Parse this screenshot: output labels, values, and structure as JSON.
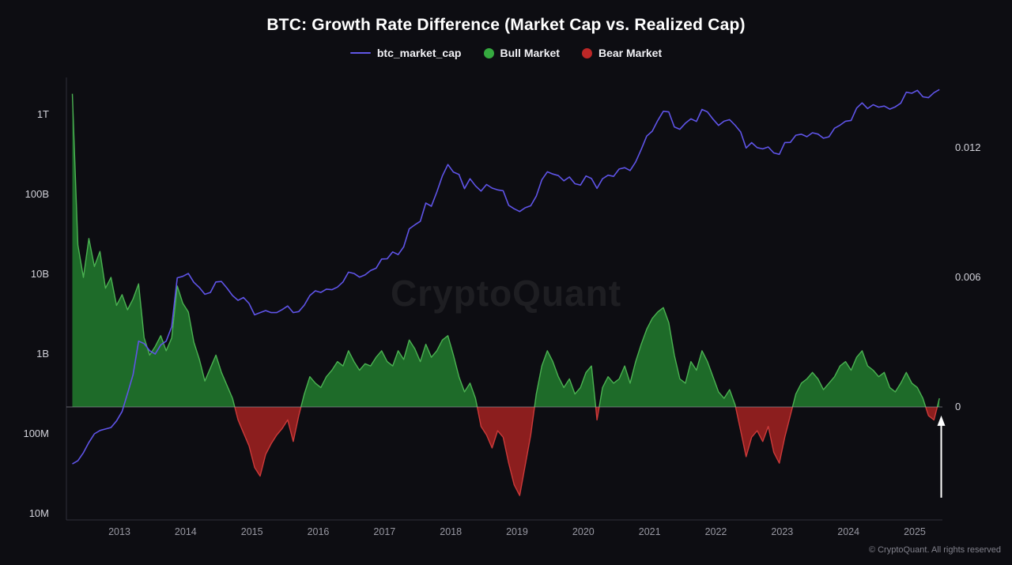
{
  "header": {
    "title": "BTC: Growth Rate Difference (Market Cap vs. Realized Cap)"
  },
  "legend": {
    "items": [
      {
        "label": "btc_market_cap",
        "type": "line",
        "color": "#6157e6"
      },
      {
        "label": "Bull Market",
        "type": "dot",
        "color": "#35a93f"
      },
      {
        "label": "Bear Market",
        "type": "dot",
        "color": "#bc2727"
      }
    ]
  },
  "watermark": {
    "text": "CryptoQuant"
  },
  "footer": {
    "text": "© CryptoQuant. All rights reserved"
  },
  "axes": {
    "left": {
      "scale": "log",
      "ticks": [
        {
          "label": "1T",
          "value": 1000000000000.0
        },
        {
          "label": "100B",
          "value": 100000000000.0
        },
        {
          "label": "10B",
          "value": 10000000000.0
        },
        {
          "label": "1B",
          "value": 1000000000.0
        },
        {
          "label": "100M",
          "value": 100000000.0
        },
        {
          "label": "10M",
          "value": 10000000.0
        }
      ]
    },
    "right": {
      "scale": "linear",
      "ticks": [
        {
          "label": "0.012",
          "value": 0.012
        },
        {
          "label": "0.006",
          "value": 0.006
        },
        {
          "label": "0",
          "value": 0
        }
      ]
    },
    "x": {
      "ticks": [
        {
          "label": "2013",
          "value": 2013
        },
        {
          "label": "2014",
          "value": 2014
        },
        {
          "label": "2015",
          "value": 2015
        },
        {
          "label": "2016",
          "value": 2016
        },
        {
          "label": "2017",
          "value": 2017
        },
        {
          "label": "2018",
          "value": 2018
        },
        {
          "label": "2019",
          "value": 2019
        },
        {
          "label": "2020",
          "value": 2020
        },
        {
          "label": "2021",
          "value": 2021
        },
        {
          "label": "2022",
          "value": 2022
        },
        {
          "label": "2023",
          "value": 2023
        },
        {
          "label": "2024",
          "value": 2024
        },
        {
          "label": "2025",
          "value": 2025
        }
      ]
    }
  },
  "chart_data": {
    "type": "line+area",
    "title": "BTC: Growth Rate Difference (Market Cap vs. Realized Cap)",
    "x_start": 2012.29,
    "x_step_years": 0.08333,
    "x_range": [
      2012.25,
      2025.45
    ],
    "left_axis": {
      "scale": "log",
      "range": [
        10000000.0,
        3000000000000.0
      ]
    },
    "right_axis": {
      "scale": "linear",
      "range": [
        -0.0052,
        0.0152
      ]
    },
    "legend_position": "top",
    "grid": false,
    "series": [
      {
        "name": "btc_market_cap",
        "axis": "left",
        "type": "line",
        "units": "USD_billions",
        "color": "#5f54e8",
        "values": [
          0.042,
          0.046,
          0.058,
          0.078,
          0.1,
          0.11,
          0.115,
          0.12,
          0.145,
          0.19,
          0.32,
          0.55,
          1.45,
          1.35,
          1.1,
          1.0,
          1.3,
          1.45,
          2.2,
          9.0,
          9.4,
          10.2,
          7.9,
          6.8,
          5.6,
          5.9,
          8.0,
          8.1,
          6.7,
          5.4,
          4.7,
          5.1,
          4.3,
          3.1,
          3.3,
          3.5,
          3.3,
          3.3,
          3.6,
          4.0,
          3.3,
          3.4,
          4.1,
          5.4,
          6.2,
          5.9,
          6.5,
          6.4,
          6.9,
          8.0,
          10.6,
          10.2,
          9.2,
          9.8,
          11.1,
          11.9,
          15.5,
          15.6,
          19.0,
          17.6,
          22.0,
          37.0,
          41.5,
          46.0,
          78.0,
          71.0,
          107.0,
          170.0,
          237.0,
          190,
          178,
          118,
          157,
          128,
          110,
          133,
          120,
          114,
          111,
          73,
          66,
          61,
          68,
          72,
          95,
          152,
          192,
          180,
          172,
          148,
          165,
          136,
          131,
          170,
          158,
          119,
          157,
          174,
          168,
          208,
          216,
          199,
          255,
          365,
          538,
          620,
          845,
          1100,
          1080,
          700,
          655,
          780,
          885,
          820,
          1160,
          1080,
          878,
          732,
          825,
          864,
          735,
          605,
          381,
          445,
          386,
          372,
          393,
          331,
          318,
          446,
          448,
          551,
          568,
          528,
          592,
          569,
          506,
          527,
          674,
          736,
          826,
          845,
          1205,
          1400,
          1190,
          1330,
          1240,
          1280,
          1170,
          1250,
          1390,
          1905,
          1850,
          2015,
          1670,
          1630,
          1880,
          2060
        ]
      },
      {
        "name": "growth_rate_difference",
        "axis": "right",
        "type": "area",
        "positive_label": "Bull Market",
        "negative_label": "Bear Market",
        "positive_fill": "#1e6b29",
        "positive_edge": "#4bb252",
        "negative_fill": "#8c1e1e",
        "negative_edge": "#cc3a3a",
        "values": [
          0.0145,
          0.0075,
          0.006,
          0.0078,
          0.0065,
          0.0072,
          0.0055,
          0.006,
          0.0047,
          0.0052,
          0.0045,
          0.005,
          0.0057,
          0.0032,
          0.0024,
          0.0028,
          0.0033,
          0.0026,
          0.0032,
          0.0056,
          0.0048,
          0.0044,
          0.003,
          0.0022,
          0.0012,
          0.0018,
          0.0024,
          0.0016,
          0.001,
          0.0004,
          -0.0006,
          -0.0012,
          -0.0018,
          -0.0028,
          -0.0032,
          -0.0022,
          -0.0017,
          -0.0013,
          -0.001,
          -0.0006,
          -0.0016,
          -0.0004,
          0.0006,
          0.0014,
          0.0011,
          0.0009,
          0.0014,
          0.0017,
          0.0021,
          0.0019,
          0.0026,
          0.0021,
          0.0017,
          0.002,
          0.0019,
          0.0023,
          0.0026,
          0.0021,
          0.0019,
          0.0026,
          0.0022,
          0.0031,
          0.0027,
          0.0021,
          0.0029,
          0.0023,
          0.0026,
          0.0031,
          0.0033,
          0.0024,
          0.0014,
          0.0007,
          0.0011,
          0.0004,
          -0.0009,
          -0.0013,
          -0.0019,
          -0.0011,
          -0.0014,
          -0.0026,
          -0.0036,
          -0.0041,
          -0.0027,
          -0.0013,
          0.0006,
          0.0019,
          0.0026,
          0.0021,
          0.0014,
          0.0009,
          0.0013,
          0.0006,
          0.0009,
          0.0016,
          0.0019,
          -0.0006,
          0.0009,
          0.0014,
          0.0011,
          0.0013,
          0.0019,
          0.0011,
          0.0021,
          0.0029,
          0.0036,
          0.0041,
          0.0044,
          0.0046,
          0.0039,
          0.0024,
          0.0013,
          0.0011,
          0.0021,
          0.0017,
          0.0026,
          0.0021,
          0.0014,
          0.0007,
          0.0004,
          0.0008,
          0.0001,
          -0.0011,
          -0.0023,
          -0.0014,
          -0.0011,
          -0.0016,
          -0.0009,
          -0.0021,
          -0.0026,
          -0.0014,
          -0.0004,
          0.0006,
          0.0011,
          0.0013,
          0.0016,
          0.0013,
          0.0008,
          0.0011,
          0.0014,
          0.0019,
          0.0021,
          0.0017,
          0.0023,
          0.0026,
          0.0019,
          0.0017,
          0.0014,
          0.0016,
          0.0009,
          0.0007,
          0.0011,
          0.0016,
          0.0011,
          0.0009,
          0.0004,
          -0.0004,
          -0.0006,
          0.0004
        ]
      }
    ],
    "annotations": [
      {
        "type": "arrow",
        "x": 2025.4,
        "value_from": -0.0042,
        "value_to": -0.0004,
        "color": "#ffffff"
      }
    ]
  }
}
